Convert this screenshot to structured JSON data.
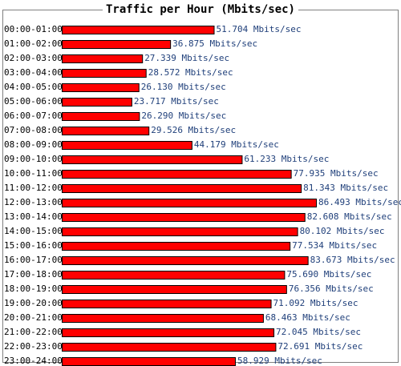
{
  "chart_data": {
    "type": "bar",
    "orientation": "horizontal",
    "title": "Traffic per Hour (Mbits/sec)",
    "xlabel": "",
    "ylabel": "",
    "unit": "Mbits/sec",
    "categories": [
      "00:00-01:00",
      "01:00-02:00",
      "02:00-03:00",
      "03:00-04:00",
      "04:00-05:00",
      "05:00-06:00",
      "06:00-07:00",
      "07:00-08:00",
      "08:00-09:00",
      "09:00-10:00",
      "10:00-11:00",
      "11:00-12:00",
      "12:00-13:00",
      "13:00-14:00",
      "14:00-15:00",
      "15:00-16:00",
      "16:00-17:00",
      "17:00-18:00",
      "18:00-19:00",
      "19:00-20:00",
      "20:00-21:00",
      "21:00-22:00",
      "22:00-23:00",
      "23:00-24:00"
    ],
    "values": [
      51.704,
      36.875,
      27.339,
      28.572,
      26.13,
      23.717,
      26.29,
      29.526,
      44.179,
      61.233,
      77.935,
      81.343,
      86.493,
      82.608,
      80.102,
      77.534,
      83.673,
      75.69,
      76.356,
      71.092,
      68.463,
      72.045,
      72.691,
      58.929
    ],
    "value_labels": [
      "51.704 Mbits/sec",
      "36.875 Mbits/sec",
      "27.339 Mbits/sec",
      "28.572 Mbits/sec",
      "26.130 Mbits/sec",
      "23.717 Mbits/sec",
      "26.290 Mbits/sec",
      "29.526 Mbits/sec",
      "44.179 Mbits/sec",
      "61.233 Mbits/sec",
      "77.935 Mbits/sec",
      "81.343 Mbits/sec",
      "86.493 Mbits/sec",
      "82.608 Mbits/sec",
      "80.102 Mbits/sec",
      "77.534 Mbits/sec",
      "83.673 Mbits/sec",
      "75.690 Mbits/sec",
      "76.356 Mbits/sec",
      "71.092 Mbits/sec",
      "68.463 Mbits/sec",
      "72.045 Mbits/sec",
      "72.691 Mbits/sec",
      "58.929 Mbits/sec"
    ],
    "grid": false,
    "legend": "none",
    "colors": {
      "bar_fill": "#ff0000",
      "bar_stroke": "#000000",
      "category_label": "#000000",
      "value_label": "#1f3f7a",
      "frame": "#808080"
    }
  }
}
